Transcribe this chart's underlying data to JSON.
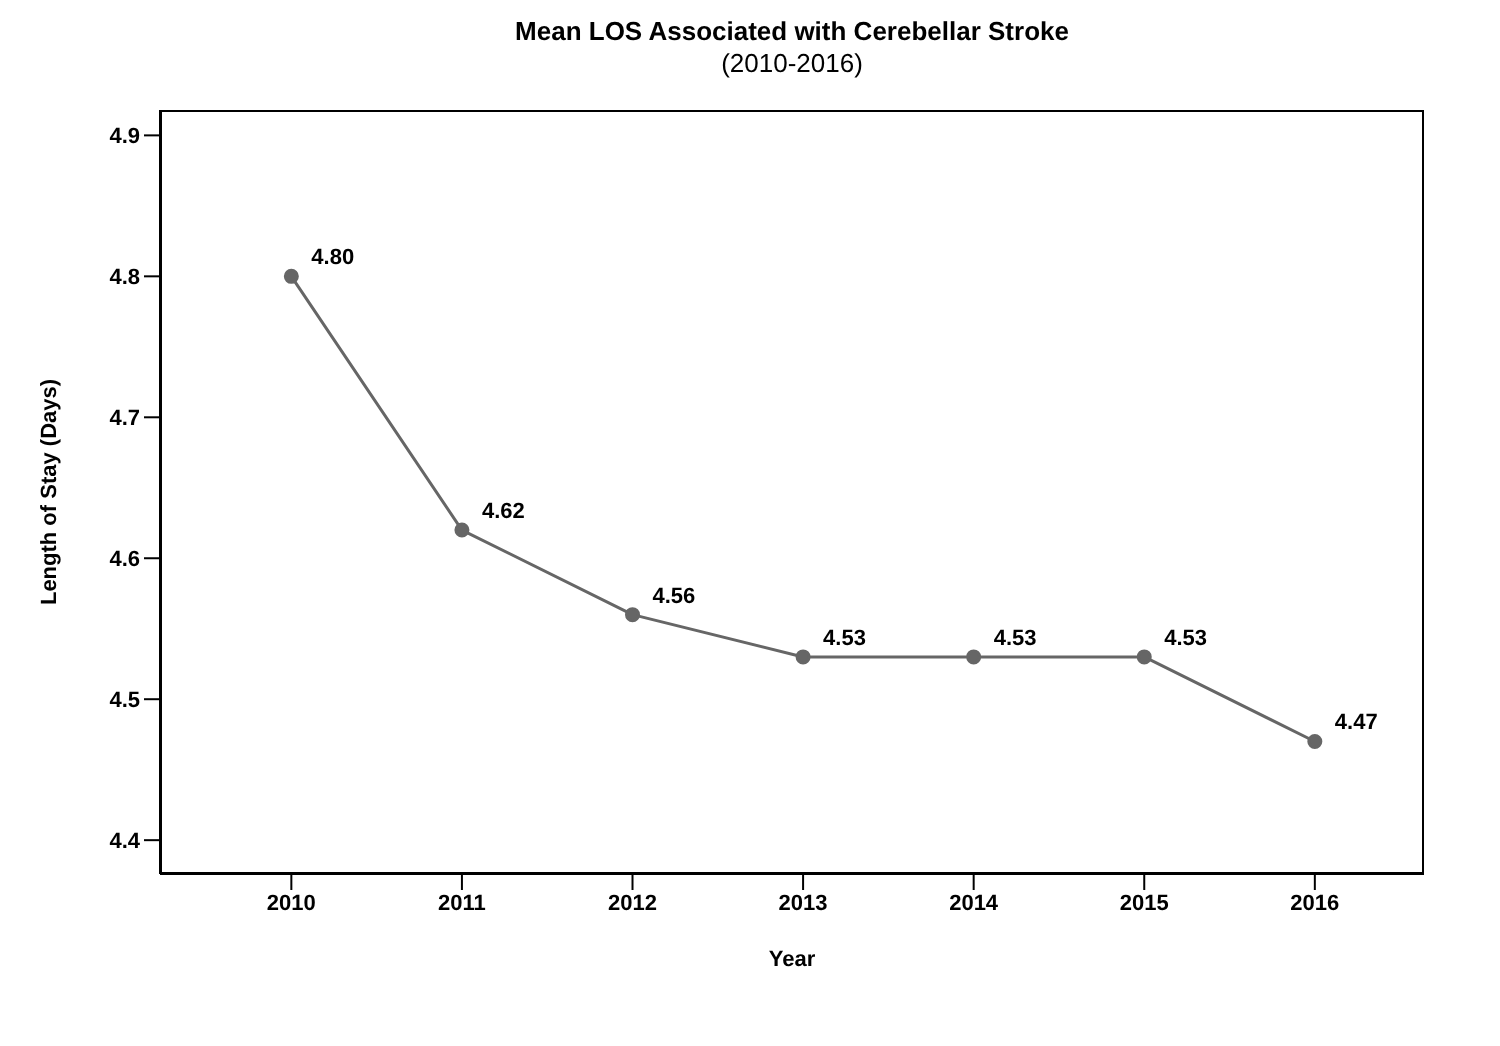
{
  "chart_data": {
    "type": "line",
    "title": "Mean LOS Associated with Cerebellar Stroke",
    "subtitle": "(2010-2016)",
    "xlabel": "Year",
    "ylabel": "Length of Stay (Days)",
    "x": [
      2010,
      2011,
      2012,
      2013,
      2014,
      2015,
      2016
    ],
    "series": [
      {
        "color": "#666666",
        "values": [
          4.8,
          4.62,
          4.56,
          4.53,
          4.53,
          4.53,
          4.47
        ],
        "value_labels": [
          "4.80",
          "4.62",
          "4.56",
          "4.53",
          "4.53",
          "4.53",
          "4.47"
        ]
      }
    ],
    "xlim": [
      2009.23,
      2016.64
    ],
    "xticks": [
      2010,
      2011,
      2012,
      2013,
      2014,
      2015,
      2016
    ],
    "ylim": [
      4.376,
      4.918
    ],
    "yticks": [
      4.4,
      4.5,
      4.6,
      4.7,
      4.8,
      4.9
    ],
    "marker": "circle",
    "line_style": "solid",
    "grid": false,
    "legend": false
  }
}
